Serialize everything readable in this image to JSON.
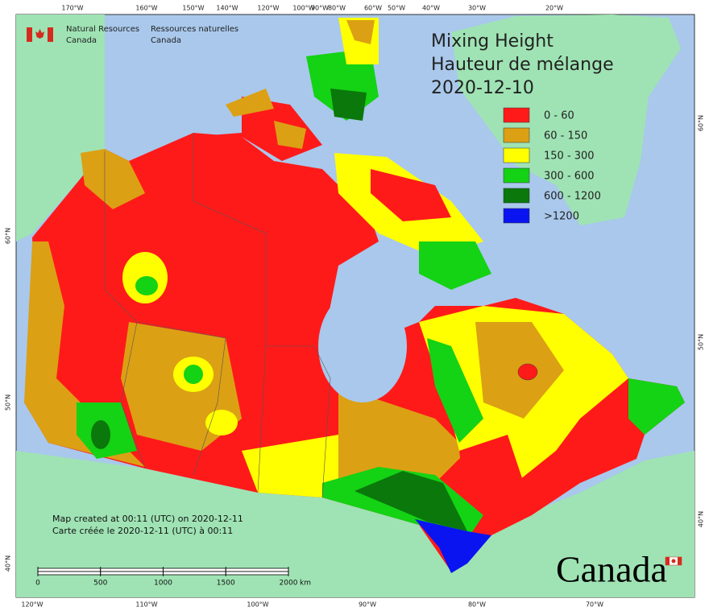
{
  "header": {
    "agency_en": [
      "Natural Resources",
      "Canada"
    ],
    "agency_fr": [
      "Ressources naturelles",
      "Canada"
    ]
  },
  "title": [
    "Mixing Height",
    "Hauteur de mélange",
    "2020-12-10"
  ],
  "legend": [
    {
      "label": "0 - 60",
      "color": "#ff1a1a"
    },
    {
      "label": "60 - 150",
      "color": "#dca014"
    },
    {
      "label": "150 - 300",
      "color": "#ffff00"
    },
    {
      "label": "300 - 600",
      "color": "#14d214"
    },
    {
      "label": "600 - 1200",
      "color": "#0a780a"
    },
    {
      "label": ">1200",
      "color": "#0a14f0"
    }
  ],
  "graticule": {
    "top": [
      "170°W",
      "160°W",
      "150°W",
      "140°W",
      "120°W",
      "100°W",
      "90°W",
      "80°W",
      "60°W",
      "50°W",
      "40°W",
      "30°W",
      "20°W"
    ],
    "bottom": [
      "120°W",
      "110°W",
      "100°W",
      "90°W",
      "80°W",
      "70°W"
    ],
    "left": [
      "60°N",
      "50°N",
      "40°N"
    ],
    "right": [
      "60°N",
      "50°N",
      "40°N"
    ]
  },
  "footer": [
    "Map created at 00:11 (UTC) on 2020-12-11",
    "Carte créée le 2020-12-11 (UTC) à 00:11"
  ],
  "scale_bar": {
    "ticks": [
      0,
      500,
      1000,
      1500,
      2000
    ],
    "unit": "km"
  },
  "wordmark": "Canada"
}
